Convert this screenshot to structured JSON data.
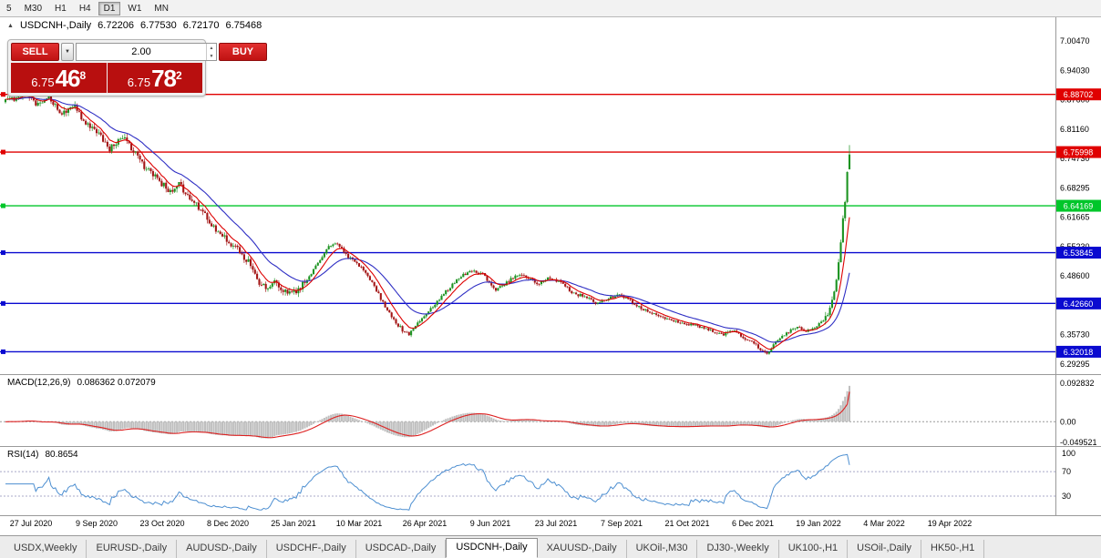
{
  "icons": {
    "chevron_down": "▼",
    "triangle_up": "▲",
    "triangle_down": "▼"
  },
  "toolbar": {
    "timeframes": [
      {
        "label": "5",
        "active": false
      },
      {
        "label": "M30",
        "active": false
      },
      {
        "label": "H1",
        "active": false
      },
      {
        "label": "H4",
        "active": false
      },
      {
        "label": "D1",
        "active": true
      },
      {
        "label": "W1",
        "active": false
      },
      {
        "label": "MN",
        "active": false
      }
    ]
  },
  "chart_header": {
    "collapse_arrow": "▲",
    "symbol": "USDCNH-,Daily",
    "open": "6.72206",
    "high": "6.77530",
    "low": "6.72170",
    "close": "6.75468"
  },
  "trade_panel": {
    "sell_label": "SELL",
    "buy_label": "BUY",
    "volume": "2.00",
    "sell_price": {
      "small": "6.75",
      "big": "46",
      "sup": "8"
    },
    "buy_price": {
      "small": "6.75",
      "big": "78",
      "sup": "2"
    }
  },
  "indicators": {
    "macd": {
      "label": "MACD(12,26,9)",
      "values": "0.086362 0.072079",
      "axis": [
        "0.092832",
        "0.00",
        "-0.049521"
      ]
    },
    "rsi": {
      "label": "RSI(14)",
      "value": "80.8654",
      "axis": [
        "100",
        "70",
        "30"
      ]
    }
  },
  "chart_data": {
    "type": "candlestick",
    "symbol": "USDCNH",
    "timeframe": "Daily",
    "ohlc_last": {
      "open": 6.72206,
      "high": 6.7753,
      "low": 6.7217,
      "close": 6.75468
    },
    "y_axis_ticks": [
      "7.00470",
      "6.94030",
      "6.87600",
      "6.81160",
      "6.74730",
      "6.68295",
      "6.61665",
      "6.55230",
      "6.48600",
      "6.42660",
      "6.35730",
      "6.29295"
    ],
    "x_axis_labels": [
      "27 Jul 2020",
      "9 Sep 2020",
      "23 Oct 2020",
      "8 Dec 2020",
      "25 Jan 2021",
      "10 Mar 2021",
      "26 Apr 2021",
      "9 Jun 2021",
      "23 Jul 2021",
      "7 Sep 2021",
      "21 Oct 2021",
      "6 Dec 2021",
      "19 Jan 2022",
      "4 Mar 2022",
      "19 Apr 2022"
    ],
    "horizontal_lines": [
      {
        "price": 6.88702,
        "label": "6.88702",
        "color": "#e00000",
        "handle": true
      },
      {
        "price": 6.75998,
        "label": "6.75998",
        "color": "#e00000",
        "handle": true
      },
      {
        "price": 6.64169,
        "label": "6.64169",
        "color": "#00c62a",
        "handle": true
      },
      {
        "price": 6.53845,
        "label": "6.53845",
        "color": "#0a0ad0",
        "handle": true
      },
      {
        "price": 6.4266,
        "label": "6.42660",
        "color": "#0a0ad0",
        "handle": true
      },
      {
        "price": 6.32018,
        "label": "6.32018",
        "color": "#0a0ad0",
        "handle": true
      }
    ],
    "bars_total": 390,
    "price_path_anchors": [
      [
        0,
        6.87
      ],
      [
        8,
        6.888
      ],
      [
        14,
        6.868
      ],
      [
        20,
        6.88
      ],
      [
        26,
        6.845
      ],
      [
        32,
        6.858
      ],
      [
        38,
        6.818
      ],
      [
        44,
        6.795
      ],
      [
        48,
        6.768
      ],
      [
        54,
        6.792
      ],
      [
        60,
        6.755
      ],
      [
        65,
        6.722
      ],
      [
        70,
        6.7
      ],
      [
        76,
        6.672
      ],
      [
        80,
        6.692
      ],
      [
        84,
        6.66
      ],
      [
        90,
        6.634
      ],
      [
        95,
        6.598
      ],
      [
        100,
        6.578
      ],
      [
        104,
        6.558
      ],
      [
        108,
        6.54
      ],
      [
        112,
        6.518
      ],
      [
        116,
        6.478
      ],
      [
        120,
        6.462
      ],
      [
        124,
        6.474
      ],
      [
        128,
        6.452
      ],
      [
        132,
        6.446
      ],
      [
        137,
        6.468
      ],
      [
        141,
        6.492
      ],
      [
        145,
        6.522
      ],
      [
        148,
        6.546
      ],
      [
        152,
        6.562
      ],
      [
        156,
        6.54
      ],
      [
        160,
        6.52
      ],
      [
        164,
        6.504
      ],
      [
        167,
        6.488
      ],
      [
        171,
        6.455
      ],
      [
        175,
        6.42
      ],
      [
        179,
        6.39
      ],
      [
        183,
        6.368
      ],
      [
        186,
        6.358
      ],
      [
        190,
        6.386
      ],
      [
        196,
        6.414
      ],
      [
        202,
        6.448
      ],
      [
        208,
        6.478
      ],
      [
        214,
        6.5
      ],
      [
        220,
        6.49
      ],
      [
        226,
        6.455
      ],
      [
        231,
        6.472
      ],
      [
        236,
        6.49
      ],
      [
        241,
        6.482
      ],
      [
        246,
        6.47
      ],
      [
        251,
        6.484
      ],
      [
        257,
        6.47
      ],
      [
        262,
        6.448
      ],
      [
        268,
        6.44
      ],
      [
        273,
        6.425
      ],
      [
        278,
        6.438
      ],
      [
        284,
        6.446
      ],
      [
        289,
        6.428
      ],
      [
        294,
        6.414
      ],
      [
        300,
        6.4
      ],
      [
        306,
        6.392
      ],
      [
        312,
        6.382
      ],
      [
        318,
        6.378
      ],
      [
        325,
        6.368
      ],
      [
        331,
        6.358
      ],
      [
        336,
        6.368
      ],
      [
        340,
        6.352
      ],
      [
        345,
        6.34
      ],
      [
        348,
        6.326
      ],
      [
        351,
        6.316
      ],
      [
        354,
        6.334
      ],
      [
        358,
        6.356
      ],
      [
        362,
        6.368
      ],
      [
        366,
        6.374
      ],
      [
        369,
        6.364
      ],
      [
        372,
        6.372
      ],
      [
        375,
        6.381
      ],
      [
        378,
        6.396
      ],
      [
        380,
        6.42
      ],
      [
        382,
        6.455
      ],
      [
        384,
        6.512
      ],
      [
        385,
        6.558
      ],
      [
        386,
        6.61
      ],
      [
        387,
        6.648
      ],
      [
        388,
        6.718
      ],
      [
        389,
        6.755
      ]
    ],
    "volatility_segments": [
      [
        0,
        140,
        0.0095
      ],
      [
        140,
        300,
        0.005
      ],
      [
        300,
        378,
        0.0042
      ],
      [
        378,
        388,
        0.01
      ],
      [
        388,
        390,
        0.004
      ]
    ],
    "macd": {
      "main_last": 0.086362,
      "signal_last": 0.072079,
      "range_min": -0.049521,
      "range_max": 0.092832
    },
    "rsi": {
      "last": 80.8654,
      "levels": [
        70,
        30
      ]
    },
    "colors": {
      "candle_up": "#1c9321",
      "candle_down": "#a31515",
      "ma_fast": "#dd0000",
      "ma_slow": "#2f2fc4",
      "macd_hist": "#bfbfbf",
      "macd_signal": "#dd2222",
      "rsi_line": "#4d8fd1",
      "axis_line": "#9a9a9a"
    }
  },
  "tabbar": {
    "tabs": [
      {
        "label": "USDX,Weekly",
        "active": false
      },
      {
        "label": "EURUSD-,Daily",
        "active": false
      },
      {
        "label": "AUDUSD-,Daily",
        "active": false
      },
      {
        "label": "USDCHF-,Daily",
        "active": false
      },
      {
        "label": "USDCAD-,Daily",
        "active": false
      },
      {
        "label": "USDCNH-,Daily",
        "active": true
      },
      {
        "label": "XAUUSD-,Daily",
        "active": false
      },
      {
        "label": "UKOil-,M30",
        "active": false
      },
      {
        "label": "DJ30-,Weekly",
        "active": false
      },
      {
        "label": "UK100-,H1",
        "active": false
      },
      {
        "label": "USOil-,Daily",
        "active": false
      },
      {
        "label": "HK50-,H1",
        "active": false
      }
    ]
  }
}
